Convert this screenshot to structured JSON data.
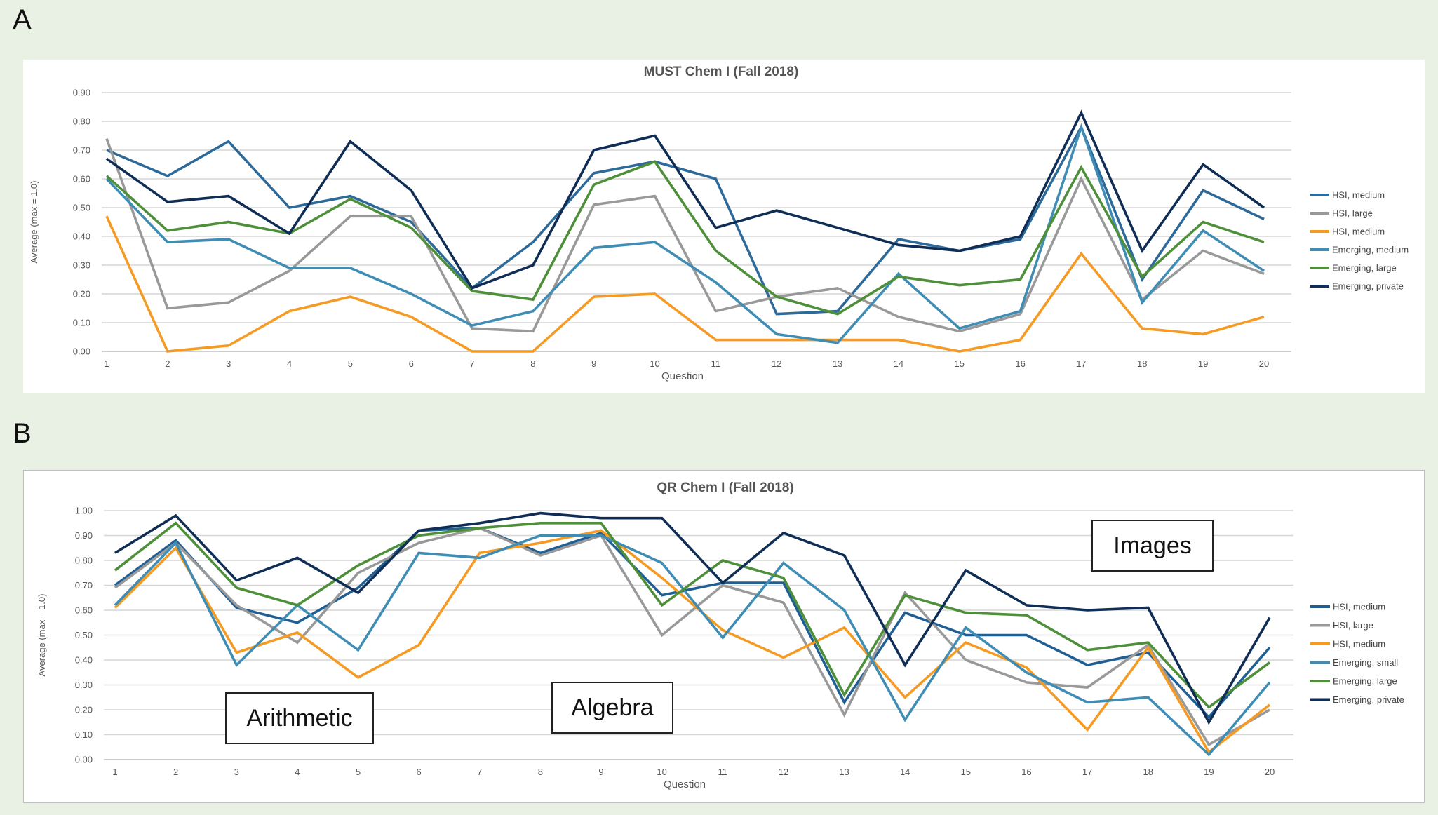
{
  "panels": [
    {
      "letter": "A"
    },
    {
      "letter": "B"
    }
  ],
  "chart_data": [
    {
      "type": "line",
      "title": "MUST Chem I (Fall 2018)",
      "xlabel": "Question",
      "ylabel": "Average (max = 1.0)",
      "categories": [
        "1",
        "2",
        "3",
        "4",
        "5",
        "6",
        "7",
        "8",
        "9",
        "10",
        "11",
        "12",
        "13",
        "14",
        "15",
        "16",
        "17",
        "18",
        "19",
        "20"
      ],
      "yticks": [
        "0.00",
        "0.10",
        "0.20",
        "0.30",
        "0.40",
        "0.50",
        "0.60",
        "0.70",
        "0.80",
        "0.90"
      ],
      "ylim": [
        0,
        0.9
      ],
      "grid": true,
      "legend_position": "right",
      "series": [
        {
          "name": "HSI, medium",
          "color": "#2e6a99",
          "values": [
            0.7,
            0.61,
            0.73,
            0.5,
            0.54,
            0.45,
            0.22,
            0.38,
            0.62,
            0.66,
            0.6,
            0.13,
            0.14,
            0.39,
            0.35,
            0.39,
            0.78,
            0.25,
            0.56,
            0.46
          ]
        },
        {
          "name": "HSI, large",
          "color": "#999999",
          "values": [
            0.74,
            0.15,
            0.17,
            0.28,
            0.47,
            0.47,
            0.08,
            0.07,
            0.51,
            0.54,
            0.14,
            0.19,
            0.22,
            0.12,
            0.07,
            0.13,
            0.6,
            0.18,
            0.35,
            0.27
          ]
        },
        {
          "name": "HSI, medium",
          "color": "#f59a23",
          "values": [
            0.47,
            0.0,
            0.02,
            0.14,
            0.19,
            0.12,
            0.0,
            0.0,
            0.19,
            0.2,
            0.04,
            0.04,
            0.04,
            0.04,
            0.0,
            0.04,
            0.34,
            0.08,
            0.06,
            0.12
          ]
        },
        {
          "name": "Emerging, medium",
          "color": "#3f8db5",
          "values": [
            0.6,
            0.38,
            0.39,
            0.29,
            0.29,
            0.2,
            0.09,
            0.14,
            0.36,
            0.38,
            0.24,
            0.06,
            0.03,
            0.27,
            0.08,
            0.14,
            0.78,
            0.17,
            0.42,
            0.28
          ]
        },
        {
          "name": "Emerging, large",
          "color": "#4e8f3a",
          "values": [
            0.61,
            0.42,
            0.45,
            0.41,
            0.53,
            0.43,
            0.21,
            0.18,
            0.58,
            0.66,
            0.35,
            0.19,
            0.13,
            0.26,
            0.23,
            0.25,
            0.64,
            0.26,
            0.45,
            0.38
          ]
        },
        {
          "name": "Emerging, private",
          "color": "#0f2d55",
          "values": [
            0.67,
            0.52,
            0.54,
            0.41,
            0.73,
            0.56,
            0.22,
            0.3,
            0.7,
            0.75,
            0.43,
            0.49,
            0.43,
            0.37,
            0.35,
            0.4,
            0.83,
            0.35,
            0.65,
            0.5
          ]
        }
      ]
    },
    {
      "type": "line",
      "title": "QR Chem I (Fall 2018)",
      "xlabel": "Question",
      "ylabel": "Average (max = 1.0)",
      "categories": [
        "1",
        "2",
        "3",
        "4",
        "5",
        "6",
        "7",
        "8",
        "9",
        "10",
        "11",
        "12",
        "13",
        "14",
        "15",
        "16",
        "17",
        "18",
        "19",
        "20"
      ],
      "yticks": [
        "0.00",
        "0.10",
        "0.20",
        "0.30",
        "0.40",
        "0.50",
        "0.60",
        "0.70",
        "0.80",
        "0.90",
        "1.00"
      ],
      "ylim": [
        0,
        1.0
      ],
      "grid": true,
      "legend_position": "right",
      "annotations": [
        "Arithmetic",
        "Algebra",
        "Images"
      ],
      "series": [
        {
          "name": "HSI, medium",
          "color": "#1f5f94",
          "values": [
            0.7,
            0.88,
            0.61,
            0.55,
            0.69,
            0.92,
            0.93,
            0.83,
            0.91,
            0.66,
            0.71,
            0.71,
            0.23,
            0.59,
            0.5,
            0.5,
            0.38,
            0.43,
            0.17,
            0.45
          ]
        },
        {
          "name": "HSI, large",
          "color": "#999999",
          "values": [
            0.69,
            0.87,
            0.62,
            0.47,
            0.75,
            0.87,
            0.93,
            0.82,
            0.9,
            0.5,
            0.7,
            0.63,
            0.18,
            0.67,
            0.4,
            0.31,
            0.29,
            0.46,
            0.06,
            0.2
          ]
        },
        {
          "name": "HSI, medium",
          "color": "#f59a23",
          "values": [
            0.61,
            0.85,
            0.43,
            0.51,
            0.33,
            0.46,
            0.83,
            0.87,
            0.92,
            0.73,
            0.52,
            0.41,
            0.53,
            0.25,
            0.47,
            0.37,
            0.12,
            0.45,
            0.03,
            0.22
          ]
        },
        {
          "name": "Emerging, small",
          "color": "#3f8db5",
          "values": [
            0.62,
            0.87,
            0.38,
            0.62,
            0.44,
            0.83,
            0.81,
            0.9,
            0.9,
            0.79,
            0.49,
            0.79,
            0.6,
            0.16,
            0.53,
            0.35,
            0.23,
            0.25,
            0.02,
            0.31
          ]
        },
        {
          "name": "Emerging, large",
          "color": "#4e8f3a",
          "values": [
            0.76,
            0.95,
            0.69,
            0.62,
            0.78,
            0.9,
            0.93,
            0.95,
            0.95,
            0.62,
            0.8,
            0.73,
            0.26,
            0.66,
            0.59,
            0.58,
            0.44,
            0.47,
            0.21,
            0.39
          ]
        },
        {
          "name": "Emerging, private",
          "color": "#0f2d55",
          "values": [
            0.83,
            0.98,
            0.72,
            0.81,
            0.67,
            0.92,
            0.95,
            0.99,
            0.97,
            0.97,
            0.71,
            0.91,
            0.82,
            0.38,
            0.76,
            0.62,
            0.6,
            0.61,
            0.15,
            0.57
          ]
        }
      ]
    }
  ]
}
